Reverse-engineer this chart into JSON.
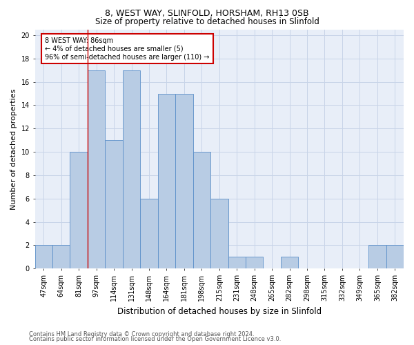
{
  "title1": "8, WEST WAY, SLINFOLD, HORSHAM, RH13 0SB",
  "title2": "Size of property relative to detached houses in Slinfold",
  "xlabel": "Distribution of detached houses by size in Slinfold",
  "ylabel": "Number of detached properties",
  "categories": [
    "47sqm",
    "64sqm",
    "81sqm",
    "97sqm",
    "114sqm",
    "131sqm",
    "148sqm",
    "164sqm",
    "181sqm",
    "198sqm",
    "215sqm",
    "231sqm",
    "248sqm",
    "265sqm",
    "282sqm",
    "298sqm",
    "315sqm",
    "332sqm",
    "349sqm",
    "365sqm",
    "382sqm"
  ],
  "values": [
    2,
    2,
    10,
    17,
    11,
    17,
    6,
    15,
    15,
    10,
    6,
    1,
    1,
    0,
    1,
    0,
    0,
    0,
    0,
    2,
    2
  ],
  "bar_color": "#b8cce4",
  "bar_edge_color": "#5b8fc9",
  "annotation_text": "8 WEST WAY: 86sqm\n← 4% of detached houses are smaller (5)\n96% of semi-detached houses are larger (110) →",
  "annotation_box_color": "#ffffff",
  "annotation_box_edge": "#cc0000",
  "ylim": [
    0,
    20.5
  ],
  "yticks": [
    0,
    2,
    4,
    6,
    8,
    10,
    12,
    14,
    16,
    18,
    20
  ],
  "grid_color": "#c8d4e8",
  "footer1": "Contains HM Land Registry data © Crown copyright and database right 2024.",
  "footer2": "Contains public sector information licensed under the Open Government Licence v3.0.",
  "red_line_x": 2.5,
  "background_color": "#e8eef8",
  "title1_fontsize": 9,
  "title2_fontsize": 8.5,
  "ylabel_fontsize": 8,
  "xlabel_fontsize": 8.5,
  "tick_fontsize": 7,
  "annot_fontsize": 7,
  "footer_fontsize": 6
}
